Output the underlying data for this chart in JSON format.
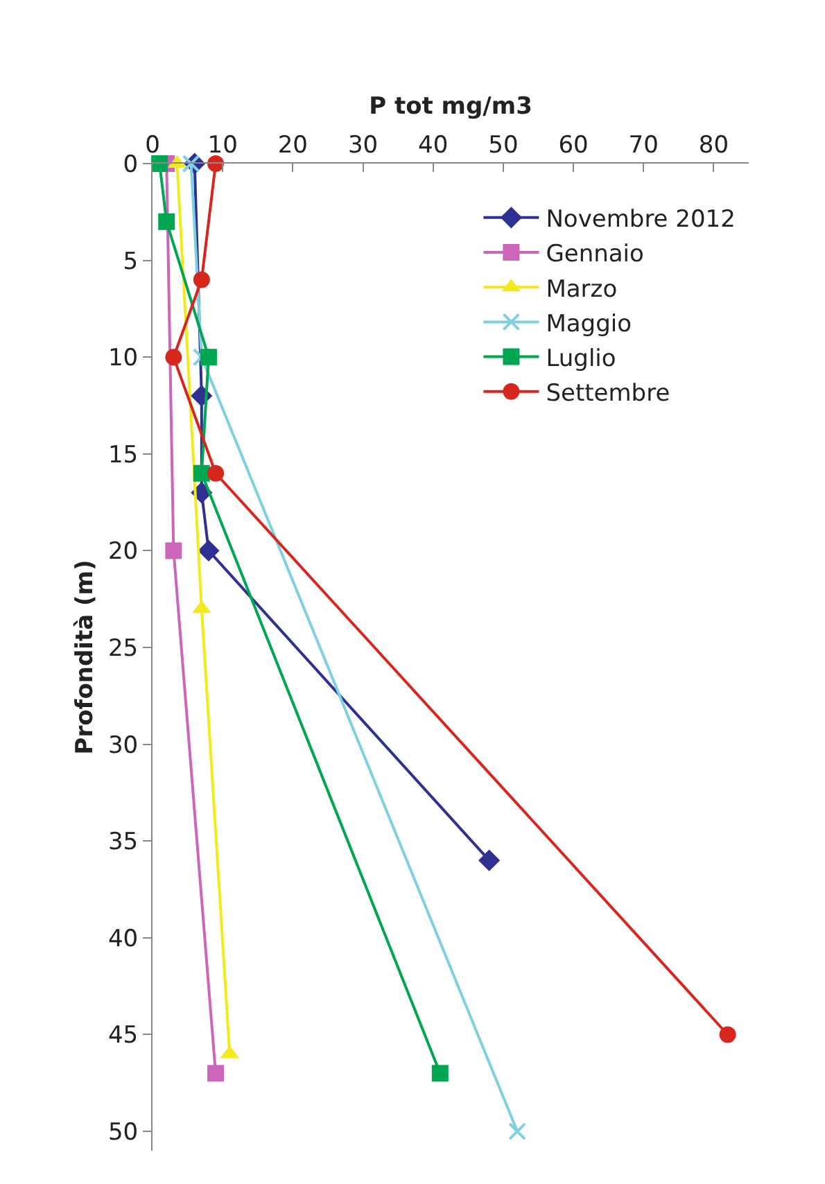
{
  "chart_data": {
    "type": "line",
    "orientation": "horizontal",
    "xlabel": "P tot mg/m3",
    "ylabel": "Profondità (m)",
    "xlim": [
      0,
      85
    ],
    "xticks": [
      0,
      10,
      20,
      30,
      40,
      50,
      60,
      70,
      80
    ],
    "ylim": [
      51,
      0
    ],
    "yticks": [
      0,
      5,
      10,
      15,
      20,
      25,
      30,
      35,
      40,
      45,
      50
    ],
    "grid": false,
    "legend": "top right",
    "series": [
      {
        "name": "Novembre 2012",
        "color": "#2e3192",
        "marker": "diamond",
        "x": [
          0,
          12,
          17,
          20,
          36
        ],
        "values": [
          6,
          7,
          7,
          8,
          48
        ]
      },
      {
        "name": "Gennaio",
        "color": "#cc66bb",
        "marker": "square",
        "x": [
          0,
          20,
          47
        ],
        "values": [
          2,
          3,
          9
        ]
      },
      {
        "name": "Marzo",
        "color": "#f2ea1c",
        "marker": "triangle",
        "x": [
          0,
          23,
          46
        ],
        "values": [
          3.5,
          7,
          11
        ]
      },
      {
        "name": "Maggio",
        "color": "#7fd0e0",
        "marker": "cross",
        "x": [
          0,
          10,
          50
        ],
        "values": [
          5.5,
          7,
          52
        ]
      },
      {
        "name": "Luglio",
        "color": "#00a651",
        "marker": "square",
        "x": [
          0,
          3,
          10,
          16,
          47
        ],
        "values": [
          1,
          2,
          8,
          7,
          41
        ]
      },
      {
        "name": "Settembre",
        "color": "#d7261e",
        "marker": "circle",
        "x": [
          0,
          6,
          10,
          16,
          45
        ],
        "values": [
          9,
          7,
          3,
          9,
          82
        ]
      }
    ]
  }
}
